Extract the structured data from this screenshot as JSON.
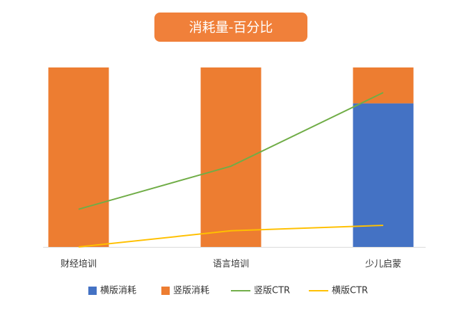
{
  "chart_data": {
    "type": "stacked-bar-line",
    "title": "消耗量-百分比",
    "categories": [
      "财经培训",
      "语言培训",
      "少儿启蒙"
    ],
    "ylim": [
      0,
      100
    ],
    "series": [
      {
        "name": "横版消耗",
        "type": "bar",
        "color": "#4472c4",
        "values": [
          0,
          0,
          80
        ]
      },
      {
        "name": "竖版消耗",
        "type": "bar",
        "color": "#ed7d31",
        "values": [
          100,
          100,
          20
        ]
      },
      {
        "name": "竖版CTR",
        "type": "line",
        "color": "#70ad47",
        "values": [
          21,
          45,
          86
        ]
      },
      {
        "name": "横版CTR",
        "type": "line",
        "color": "#ffc000",
        "values": [
          0,
          9,
          12
        ]
      }
    ]
  }
}
